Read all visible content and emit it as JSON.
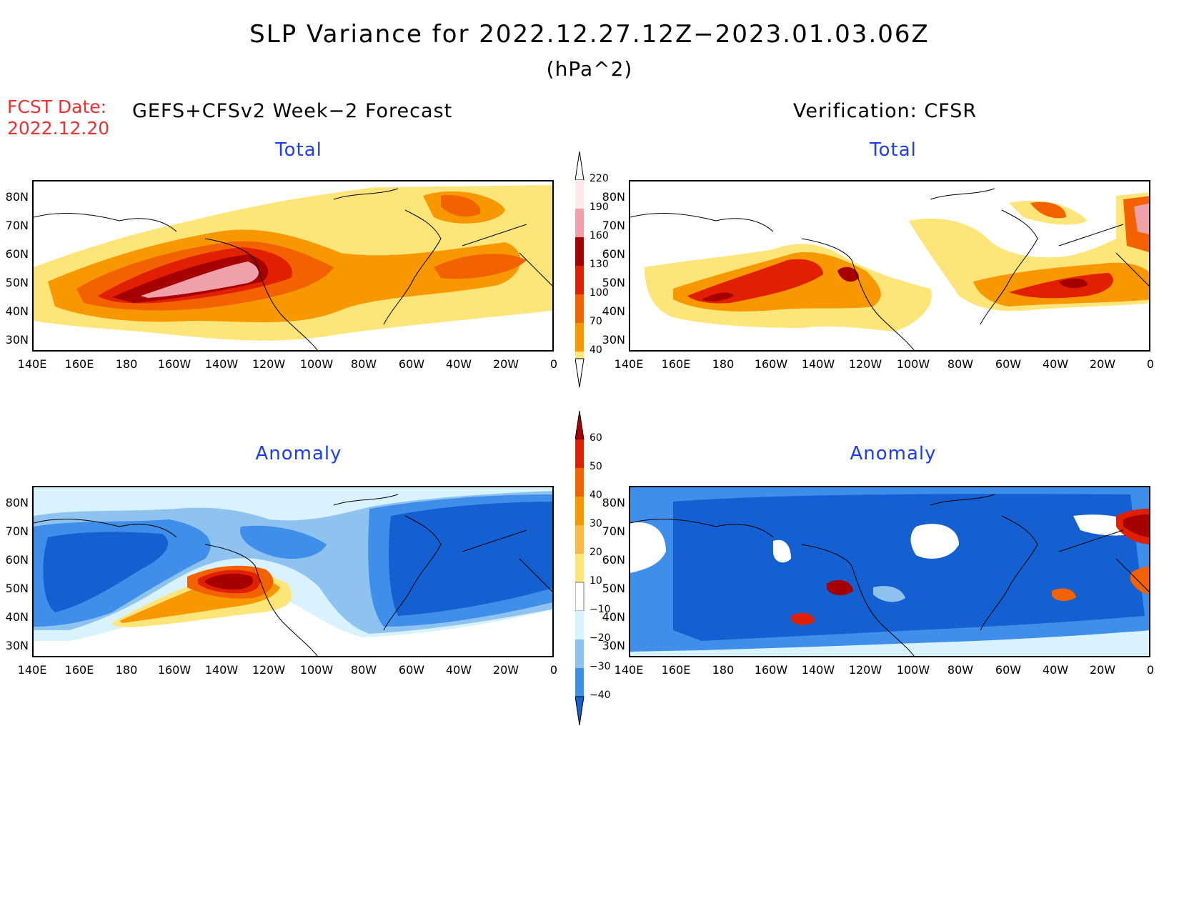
{
  "header": {
    "title": "SLP Variance for 2022.12.27.12Z−2023.01.03.06Z",
    "units": "(hPa^2)",
    "fcst_date_label": "FCST Date:",
    "fcst_date_value": "2022.12.20",
    "left_heading": "GEFS+CFSv2 Week−2 Forecast",
    "right_heading": "Verification: CFSR"
  },
  "panels": {
    "forecast_total": {
      "title": "Total"
    },
    "verification_total": {
      "title": "Total"
    },
    "forecast_anomaly": {
      "title": "Anomaly"
    },
    "verification_anomaly": {
      "title": "Anomaly"
    }
  },
  "axes": {
    "lat_ticks": [
      "80N",
      "70N",
      "60N",
      "50N",
      "40N",
      "30N"
    ],
    "lon_ticks": [
      "140E",
      "160E",
      "180",
      "160W",
      "140W",
      "120W",
      "100W",
      "80W",
      "60W",
      "40W",
      "20W",
      "0"
    ]
  },
  "colorbars": {
    "total": {
      "labels": [
        "220",
        "190",
        "160",
        "130",
        "100",
        "70",
        "40"
      ],
      "colors": [
        "#fde8ea",
        "#f0a0a8",
        "#a60000",
        "#e02000",
        "#f26200",
        "#f79800",
        "#fde57a"
      ]
    },
    "anomaly": {
      "labels": [
        "60",
        "50",
        "40",
        "30",
        "20",
        "10",
        "−10",
        "−20",
        "−30",
        "−40"
      ],
      "colors": [
        "#a60000",
        "#e02000",
        "#f26200",
        "#f79800",
        "#fbb848",
        "#fde57a",
        "#ffffff",
        "#d9f2ff",
        "#8ec3f0",
        "#3e8eea",
        "#1560d0"
      ]
    }
  },
  "colors": {
    "title_blue": "#1a3cff",
    "fcst_red": "#f03030"
  }
}
